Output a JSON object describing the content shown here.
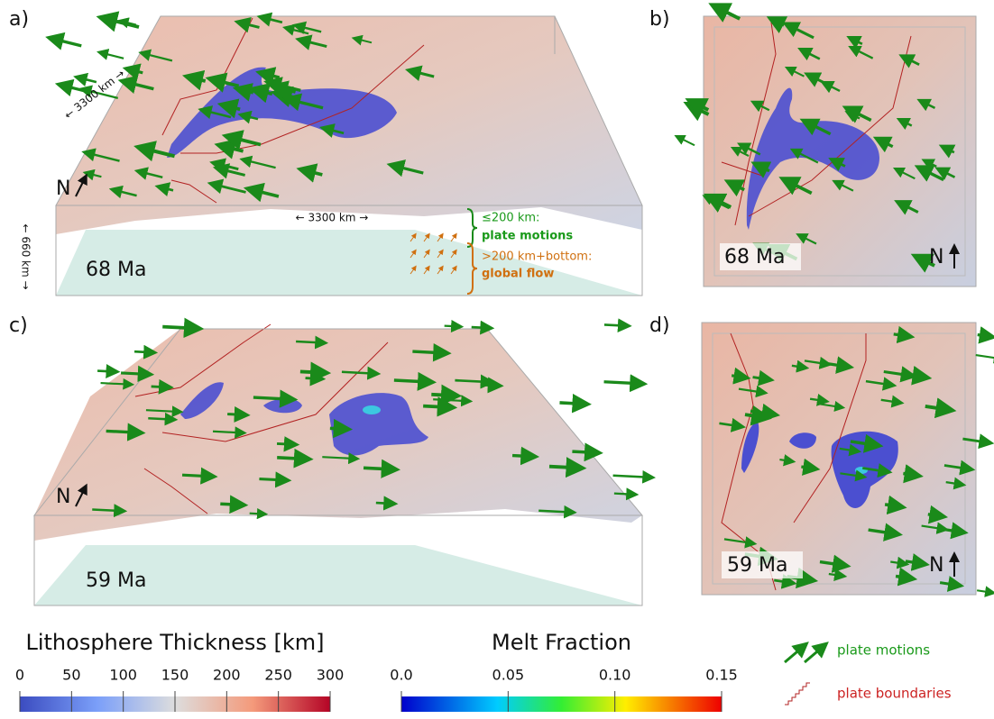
{
  "panels": [
    {
      "label": "a)",
      "age": "68 Ma"
    },
    {
      "label": "b)",
      "age": "68 Ma"
    },
    {
      "label": "c)",
      "age": "59 Ma"
    },
    {
      "label": "d)",
      "age": "59 Ma"
    }
  ],
  "north": "N",
  "annotations": {
    "width": "← 3300 km →",
    "depth": "← 660 km →",
    "upper_range": "≤200 km:",
    "upper_source": "plate motions",
    "lower_range": ">200 km+bottom:",
    "lower_source": "global flow"
  },
  "colorbars": [
    {
      "title": "Lithosphere Thickness [km]",
      "range": [
        0,
        300
      ],
      "ticks": [
        0,
        50,
        100,
        150,
        200,
        250,
        300
      ],
      "colormap": "coolwarm"
    },
    {
      "title": "Melt Fraction",
      "range": [
        0,
        0.15
      ],
      "ticks": [
        {
          "value": 0,
          "label": "0.0"
        },
        0.05,
        {
          "value": 0.1,
          "label": "0.10"
        },
        0.15
      ],
      "colormap": "jet"
    }
  ],
  "legend": [
    {
      "label": "plate motions"
    },
    {
      "label": "plate boundaries"
    }
  ]
}
